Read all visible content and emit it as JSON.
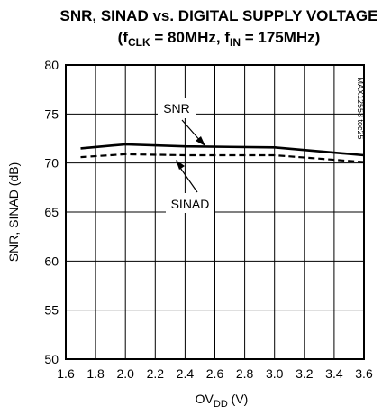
{
  "chart_data": {
    "type": "line",
    "title_line1": "SNR, SINAD vs. DIGITAL SUPPLY VOLTAGE",
    "title_line2": {
      "prefix": "(f",
      "clk_sub": "CLK",
      "middle": " = 80MHz, f",
      "in_sub": "IN",
      "suffix": " = 175MHz)"
    },
    "xlabel": {
      "main": "OV",
      "sub": "DD",
      "suffix": " (V)"
    },
    "ylabel": "SNR, SINAD (dB)",
    "xlim": [
      1.6,
      3.6
    ],
    "ylim": [
      50,
      80
    ],
    "x_ticks": [
      "1.6",
      "1.8",
      "2.0",
      "2.2",
      "2.4",
      "2.6",
      "2.8",
      "3.0",
      "3.2",
      "3.4",
      "3.6"
    ],
    "y_ticks": [
      "50",
      "55",
      "60",
      "65",
      "70",
      "75",
      "80"
    ],
    "grid": true,
    "x": [
      1.7,
      2.0,
      2.4,
      3.0,
      3.6
    ],
    "series": [
      {
        "name": "SNR",
        "values": [
          71.5,
          71.9,
          71.7,
          71.6,
          70.8
        ],
        "style": "solid"
      },
      {
        "name": "SINAD",
        "values": [
          70.6,
          70.9,
          70.8,
          70.8,
          70.1
        ],
        "style": "dashed"
      }
    ],
    "annotations": [
      "SNR",
      "SINAD"
    ],
    "watermark": "MAX12558 toc25"
  }
}
